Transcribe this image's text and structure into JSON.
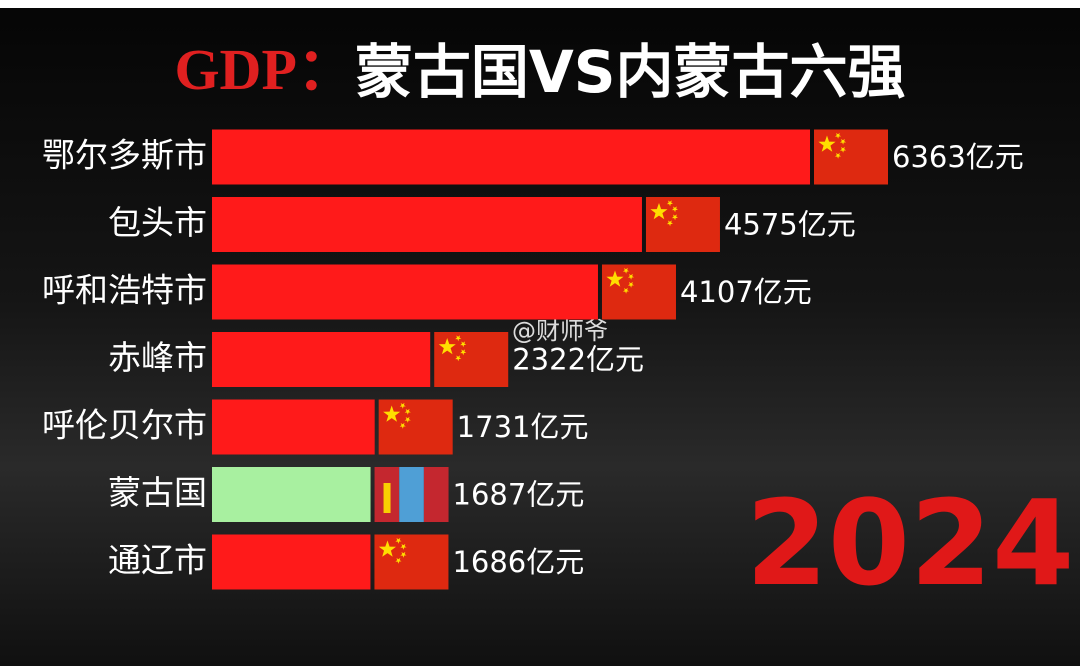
{
  "chart_data": {
    "type": "bar",
    "orientation": "horizontal",
    "title": {
      "highlight": "GDP：",
      "text": "蒙古国VS内蒙古六强"
    },
    "categories": [
      "鄂尔多斯市",
      "包头市",
      "呼和浩特市",
      "赤峰市",
      "呼伦贝尔市",
      "蒙古国",
      "通辽市"
    ],
    "values": [
      6363,
      4575,
      4107,
      2322,
      1731,
      1687,
      1686
    ],
    "value_labels": [
      "6363亿元",
      "4575亿元",
      "4107亿元",
      "2322亿元",
      "1731亿元",
      "1687亿元",
      "1686亿元"
    ],
    "colors": [
      "#ff1a1a",
      "#ff1a1a",
      "#ff1a1a",
      "#ff1a1a",
      "#ff1a1a",
      "#a8f0a0",
      "#ff1a1a"
    ],
    "flags": [
      "cn",
      "cn",
      "cn",
      "cn",
      "cn",
      "mn",
      "cn"
    ],
    "annotation": "2024",
    "watermark": "@财师爷"
  }
}
